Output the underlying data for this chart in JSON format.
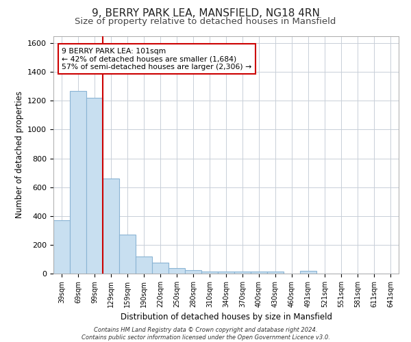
{
  "title1": "9, BERRY PARK LEA, MANSFIELD, NG18 4RN",
  "title2": "Size of property relative to detached houses in Mansfield",
  "xlabel": "Distribution of detached houses by size in Mansfield",
  "ylabel": "Number of detached properties",
  "footer1": "Contains HM Land Registry data © Crown copyright and database right 2024.",
  "footer2": "Contains public sector information licensed under the Open Government Licence v3.0.",
  "annotation_line1": "9 BERRY PARK LEA: 101sqm",
  "annotation_line2": "← 42% of detached houses are smaller (1,684)",
  "annotation_line3": "57% of semi-detached houses are larger (2,306) →",
  "bar_color": "#c8dff0",
  "bar_edge_color": "#8ab4d4",
  "red_line_color": "#cc0000",
  "categories": [
    "39sqm",
    "69sqm",
    "99sqm",
    "129sqm",
    "159sqm",
    "190sqm",
    "220sqm",
    "250sqm",
    "280sqm",
    "310sqm",
    "340sqm",
    "370sqm",
    "400sqm",
    "430sqm",
    "460sqm",
    "491sqm",
    "521sqm",
    "551sqm",
    "581sqm",
    "611sqm",
    "641sqm"
  ],
  "values": [
    370,
    1270,
    1220,
    660,
    270,
    120,
    75,
    40,
    25,
    15,
    15,
    15,
    15,
    15,
    0,
    20,
    0,
    0,
    0,
    0,
    0
  ],
  "ylim": [
    0,
    1650
  ],
  "yticks": [
    0,
    200,
    400,
    600,
    800,
    1000,
    1200,
    1400,
    1600
  ],
  "background_color": "#ffffff",
  "grid_color": "#c8cfd8",
  "title_fontsize": 11,
  "subtitle_fontsize": 9.5
}
